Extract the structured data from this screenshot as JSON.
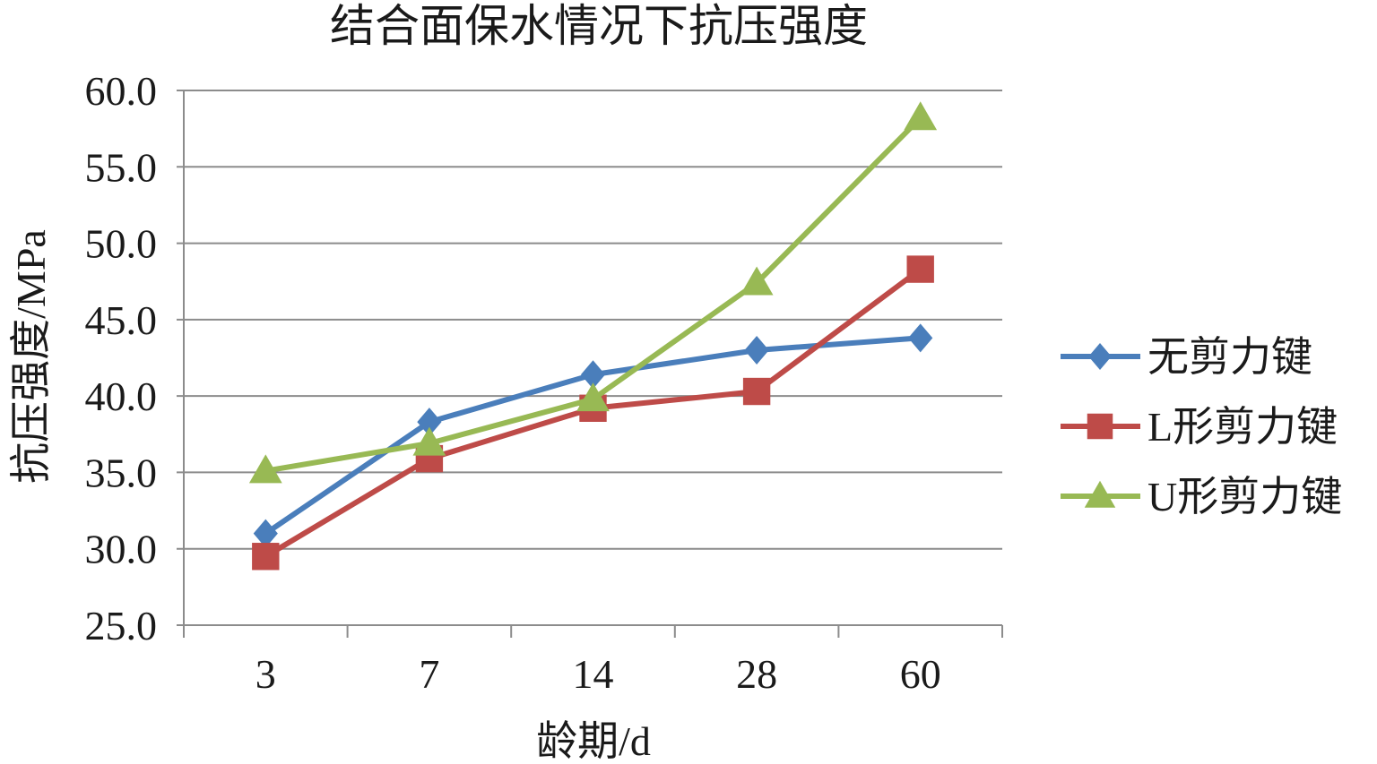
{
  "chart_data": {
    "type": "line",
    "title": "结合面保水情况下抗压强度",
    "xlabel": "龄期/d",
    "ylabel": "抗压强度/MPa",
    "categories": [
      "3",
      "7",
      "14",
      "28",
      "60"
    ],
    "ylim": [
      25.0,
      60.0
    ],
    "yticks": [
      "25.0",
      "30.0",
      "35.0",
      "40.0",
      "45.0",
      "50.0",
      "55.0",
      "60.0"
    ],
    "grid": "horizontal",
    "legend_position": "right",
    "series": [
      {
        "name": "无剪力键",
        "marker": "diamond",
        "color": "#4A7EBB",
        "values": [
          31.0,
          38.3,
          41.4,
          43.0,
          43.8
        ]
      },
      {
        "name": "L形剪力键",
        "marker": "square",
        "color": "#BE4B48",
        "values": [
          29.5,
          35.9,
          39.2,
          40.3,
          48.3
        ]
      },
      {
        "name": "U形剪力键",
        "marker": "triangle",
        "color": "#98B954",
        "values": [
          35.1,
          36.9,
          39.8,
          47.4,
          58.2
        ]
      }
    ]
  }
}
